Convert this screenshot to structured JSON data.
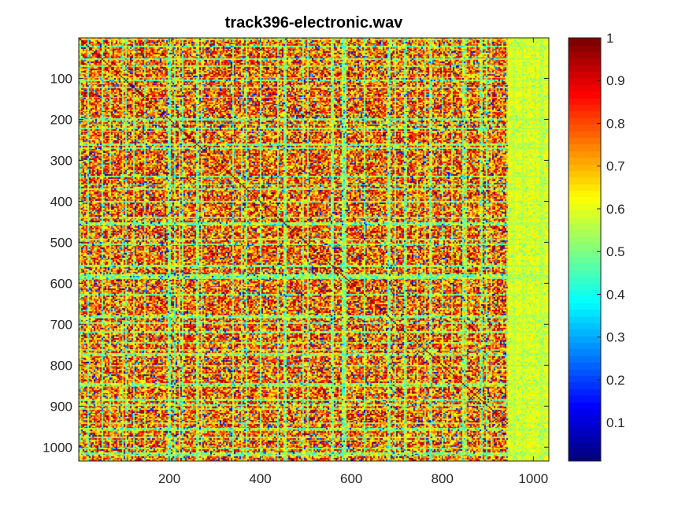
{
  "chart_data": {
    "type": "heatmap",
    "title": "track396-electronic.wav",
    "xlabel": "",
    "ylabel": "",
    "xlim": [
      1,
      1034
    ],
    "ylim": [
      1,
      1034
    ],
    "y_reversed": true,
    "x_ticks": [
      200,
      400,
      600,
      800,
      1000
    ],
    "x_tick_labels": [
      "200",
      "400",
      "600",
      "800",
      "1000"
    ],
    "y_ticks": [
      100,
      200,
      300,
      400,
      500,
      600,
      700,
      800,
      900,
      1000
    ],
    "y_tick_labels": [
      "100",
      "200",
      "300",
      "400",
      "500",
      "600",
      "700",
      "800",
      "900",
      "1000"
    ],
    "colorbar": {
      "colormap": "jet",
      "range": [
        0.01,
        1
      ],
      "ticks": [
        0.1,
        0.2,
        0.3,
        0.4,
        0.5,
        0.6,
        0.7,
        0.8,
        0.9,
        1
      ],
      "tick_labels": [
        "0.1",
        "0.2",
        "0.3",
        "0.4",
        "0.5",
        "0.6",
        "0.7",
        "0.8",
        "0.9",
        "1"
      ],
      "placement": "right"
    },
    "matrix_description_values": {
      "typical_value": 0.85,
      "low_stripe_value": 0.35,
      "min_value": 0.05
    },
    "grid": false
  }
}
